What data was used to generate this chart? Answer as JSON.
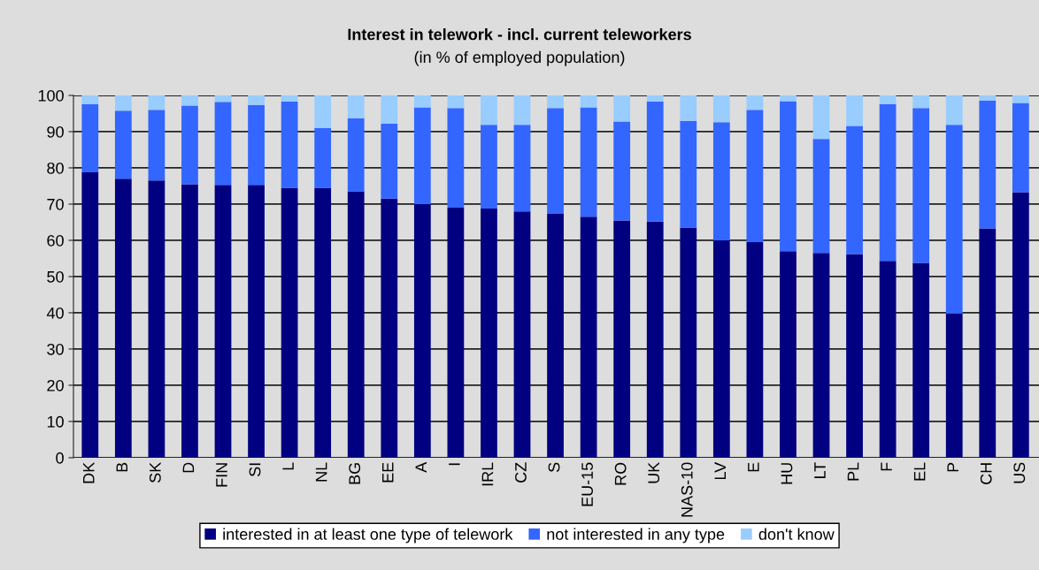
{
  "chart_data": {
    "type": "bar",
    "title": "Interest in telework - incl. current teleworkers",
    "subtitle": "(in % of employed population)",
    "categories": [
      "DK",
      "B",
      "SK",
      "D",
      "FIN",
      "SI",
      "L",
      "NL",
      "BG",
      "EE",
      "A",
      "I",
      "IRL",
      "CZ",
      "S",
      "EU-15",
      "RO",
      "UK",
      "NAS-10",
      "LV",
      "E",
      "HU",
      "LT",
      "PL",
      "F",
      "EL",
      "P",
      "CH",
      "US"
    ],
    "stacked": true,
    "ylim": [
      0,
      100
    ],
    "yticks": [
      0,
      10,
      20,
      30,
      40,
      50,
      60,
      70,
      80,
      90,
      100
    ],
    "grid": "y",
    "legend": "bottom",
    "series": [
      {
        "name": "interested in at least one type of telework",
        "color": "#000080",
        "values": [
          78.8,
          77,
          76.5,
          75.5,
          75.3,
          75.3,
          74.5,
          74.5,
          73.5,
          71.5,
          70,
          69,
          68.8,
          68,
          67.3,
          66.5,
          65.5,
          65.2,
          63.5,
          60,
          59.5,
          57,
          56.5,
          56.2,
          54.3,
          53.8,
          39.8,
          63.3,
          73.3
        ]
      },
      {
        "name": "not interested in any type",
        "color": "#3366ff",
        "values": [
          18.8,
          18.8,
          19.5,
          21.7,
          22.9,
          22.1,
          23.8,
          16.5,
          20.2,
          20.7,
          26.7,
          27.5,
          23.1,
          23.9,
          29.2,
          30.2,
          27.3,
          33.1,
          29.5,
          32.6,
          36.5,
          41.4,
          31.5,
          35.4,
          43.3,
          42.7,
          52.1,
          35.3,
          24.6
        ]
      },
      {
        "name": "don't know",
        "color": "#99ccff",
        "values": [
          2.4,
          4.2,
          4.0,
          2.8,
          1.8,
          2.6,
          1.7,
          9.0,
          6.3,
          7.8,
          3.3,
          3.5,
          8.1,
          8.1,
          3.5,
          3.3,
          7.2,
          1.7,
          7.0,
          7.4,
          4.0,
          1.6,
          12.0,
          8.4,
          2.4,
          3.5,
          8.1,
          1.4,
          2.1
        ]
      }
    ]
  }
}
